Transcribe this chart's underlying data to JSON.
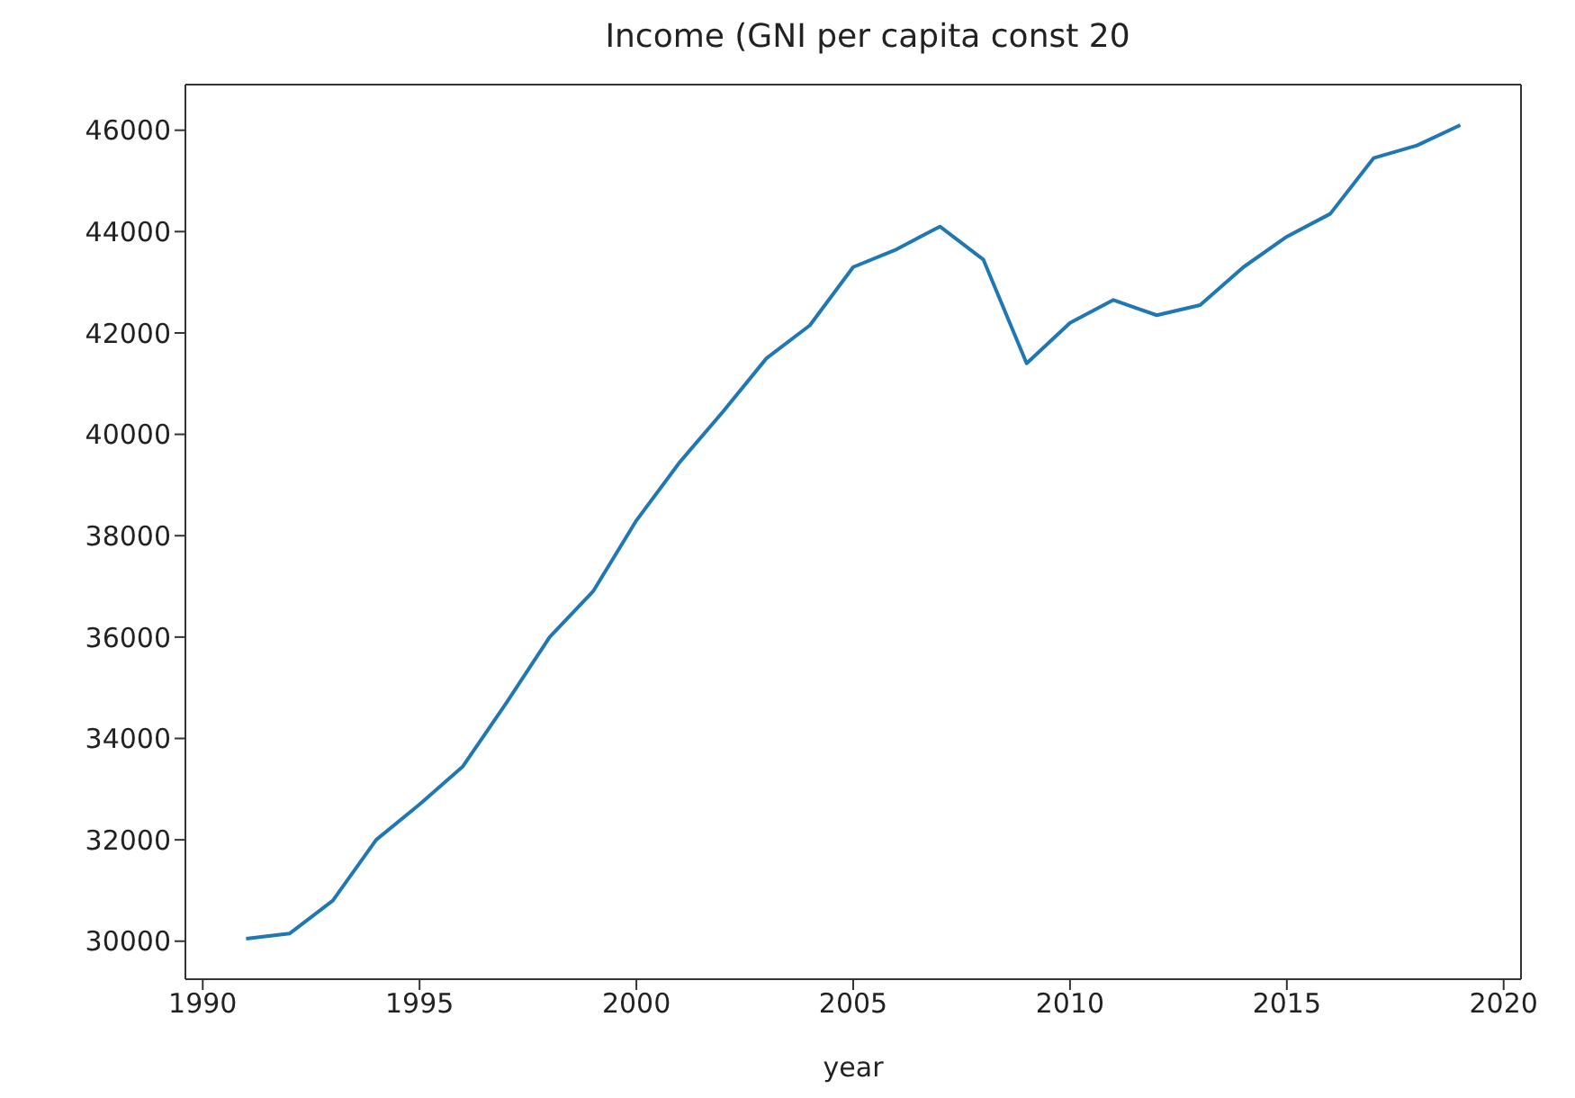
{
  "chart_data": {
    "type": "line",
    "title": "Income (GNI per capita const 20",
    "xlabel": "year",
    "x": [
      1991,
      1992,
      1993,
      1994,
      1995,
      1996,
      1997,
      1998,
      1999,
      2000,
      2001,
      2002,
      2003,
      2004,
      2005,
      2006,
      2007,
      2008,
      2009,
      2010,
      2011,
      2012,
      2013,
      2014,
      2015,
      2016,
      2017,
      2018,
      2019
    ],
    "series": [
      {
        "color": "#1f77b4",
        "values": [
          30050,
          30150,
          30800,
          32000,
          32700,
          33450,
          34700,
          36000,
          36900,
          38300,
          39450,
          40450,
          41500,
          42150,
          43300,
          43650,
          44100,
          43450,
          41400,
          42200,
          42650,
          42350,
          42550,
          43300,
          43900,
          44350,
          45450,
          45700,
          46100
        ]
      }
    ],
    "xlim": [
      1989.6,
      2020.4
    ],
    "xticks": [
      1990,
      1995,
      2000,
      2005,
      2010,
      2015,
      2020
    ],
    "ylim": [
      29250,
      46900
    ],
    "yticks": [
      30000,
      32000,
      34000,
      36000,
      38000,
      40000,
      42000,
      44000,
      46000
    ],
    "grid": false,
    "legend": false,
    "marker": "none",
    "line_style": "solid"
  }
}
